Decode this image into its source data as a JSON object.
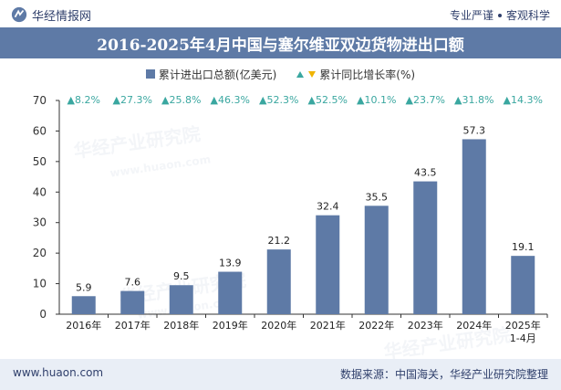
{
  "header": {
    "brand_name": "华经情报网",
    "slogan_left": "专业严谨",
    "slogan_right": "客观科学"
  },
  "watermark": "华经产业研究院",
  "watermark_url": "www.huaon.com",
  "colors": {
    "bar": "#5e7aa6",
    "up_arrow": "#3aa7a0",
    "down_arrow": "#f0b400",
    "title_bg": "#5e7aa6"
  },
  "footer": {
    "url": "www.huaon.com",
    "source": "数据来源：中国海关，华经产业研究院整理"
  },
  "chart_data": {
    "type": "bar",
    "title": "2016-2025年4月中国与塞尔维亚双边货物进出口额",
    "legend": [
      {
        "label": "累计进出口总额(亿美元)",
        "marker": "bar"
      },
      {
        "label": "累计同比增长率(%)",
        "marker": "up-down-triangle"
      }
    ],
    "categories": [
      "2016年",
      "2017年",
      "2018年",
      "2019年",
      "2020年",
      "2021年",
      "2022年",
      "2023年",
      "2024年",
      "2025年\n1-4月"
    ],
    "series": [
      {
        "name": "累计进出口总额(亿美元)",
        "values": [
          5.9,
          7.6,
          9.5,
          13.9,
          21.2,
          32.4,
          35.5,
          43.5,
          57.3,
          19.1
        ]
      },
      {
        "name": "累计同比增长率(%)",
        "values": [
          8.2,
          27.3,
          25.8,
          46.3,
          52.3,
          52.5,
          10.1,
          23.7,
          31.8,
          14.3
        ]
      }
    ],
    "growth_labels": [
      "▲8.2%",
      "▲27.3%",
      "▲25.8%",
      "▲46.3%",
      "▲52.3%",
      "▲52.5%",
      "▲10.1%",
      "▲23.7%",
      "▲31.8%",
      "▲14.3%"
    ],
    "ylim": [
      0,
      70
    ],
    "yticks": [
      0,
      10,
      20,
      30,
      40,
      50,
      60,
      70
    ],
    "grid": false
  }
}
